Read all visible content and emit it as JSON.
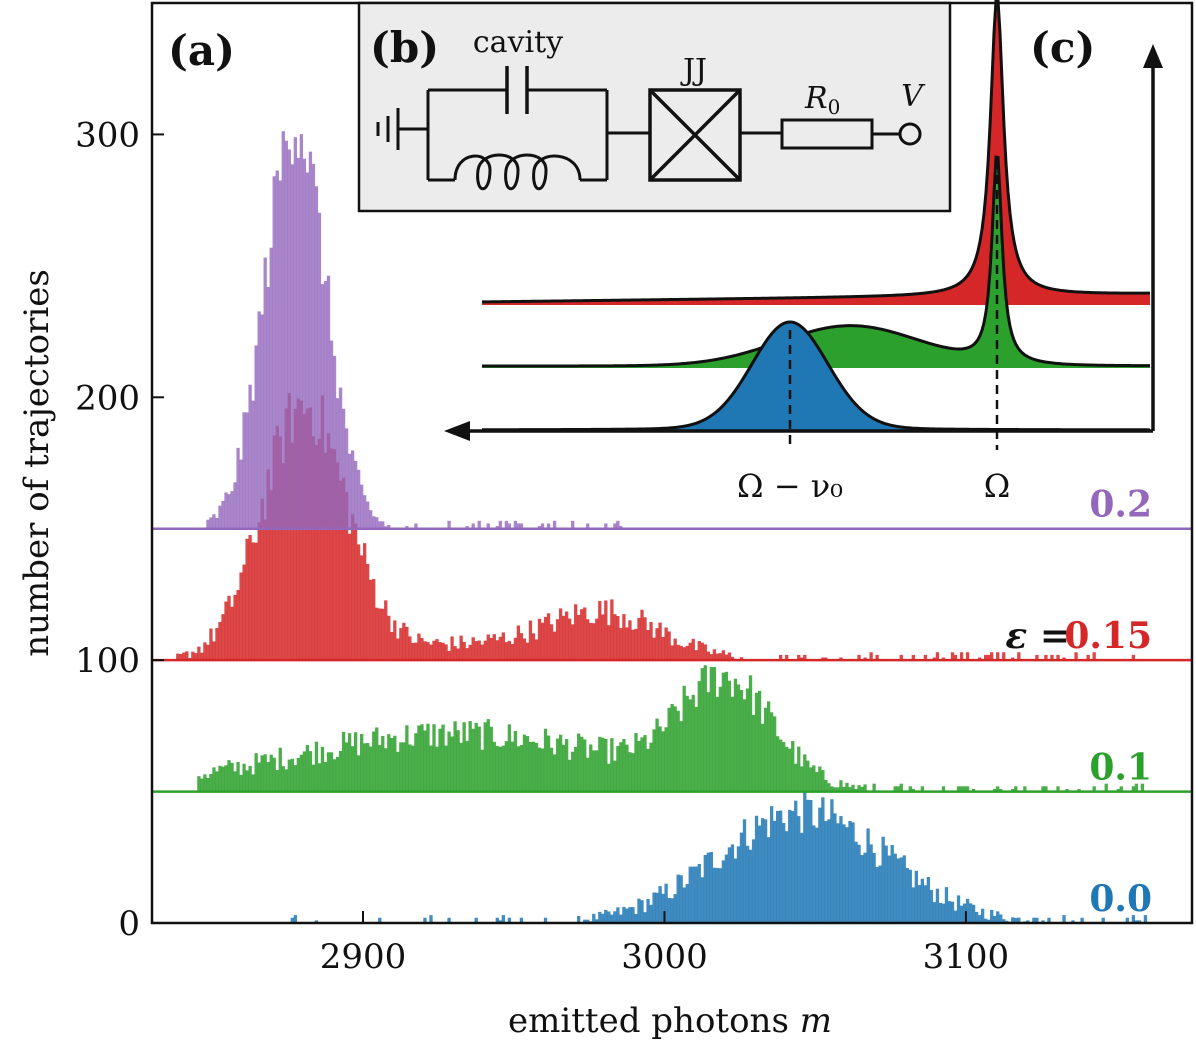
{
  "colors": {
    "purple": "#9467bd",
    "red": "#d62728",
    "green": "#2ca02c",
    "blue": "#1f77b4",
    "axis": "#111111",
    "inset_bg": "#ececec"
  },
  "chart_data": [
    {
      "type": "bar",
      "panel": "(a)",
      "title": "",
      "xlabel_text": "emitted photons",
      "xlabel_var": "m",
      "ylabel": "number of trajectories",
      "xlim": [
        2830,
        3175
      ],
      "ylim": [
        0,
        350
      ],
      "x_ticks": [
        2900,
        3000,
        3100
      ],
      "x_tick_labels": [
        "2900",
        "3000",
        "3100"
      ],
      "y_ticks": [
        0,
        100,
        200,
        300
      ],
      "y_tick_labels": [
        "0",
        "100",
        "200",
        "300"
      ],
      "legend_prefix": "ε =",
      "series": [
        {
          "name": "0.0",
          "color": "#1f77b4",
          "offset": 0,
          "components": [
            {
              "center": 3045,
              "sigma": 28,
              "amp": 42
            }
          ],
          "support": [
            2870,
            3160
          ]
        },
        {
          "name": "0.1",
          "color": "#2ca02c",
          "offset": 50,
          "components": [
            {
              "center": 3020,
              "sigma": 15,
              "amp": 38
            },
            {
              "center": 2930,
              "sigma": 55,
              "amp": 22
            }
          ],
          "support": [
            2845,
            3160
          ]
        },
        {
          "name": "0.15",
          "color": "#d62728",
          "offset": 100,
          "components": [
            {
              "center": 2880,
              "sigma": 14,
              "amp": 95
            },
            {
              "center": 2980,
              "sigma": 18,
              "amp": 15
            },
            {
              "center": 2940,
              "sigma": 40,
              "amp": 6
            }
          ],
          "support": [
            2835,
            3160
          ]
        },
        {
          "name": "0.2",
          "color": "#9467bd",
          "offset": 150,
          "components": [
            {
              "center": 2877,
              "sigma": 10,
              "amp": 155
            }
          ],
          "support": [
            2848,
            2990
          ]
        }
      ]
    },
    {
      "type": "line",
      "panel": "(c)",
      "description_labels": {
        "left_peak": "Ω − ν₀",
        "right_peak": "Ω"
      },
      "series": [
        {
          "name": "0.0",
          "color": "#1f77b4",
          "peaks": [
            {
              "position": "Ω − ν₀",
              "height": 1.0
            }
          ]
        },
        {
          "name": "0.1",
          "color": "#2ca02c",
          "peaks": [
            {
              "position": "Ω",
              "height": 1.0
            },
            {
              "position": "broad",
              "height": 0.25
            }
          ]
        },
        {
          "name": "0.15",
          "color": "#d62728",
          "peaks": [
            {
              "position": "Ω",
              "height": 1.0
            }
          ]
        }
      ]
    }
  ],
  "circuit": {
    "panel": "(b)",
    "cavity_label": "cavity",
    "jj_label": "JJ",
    "resistor_label": "R",
    "resistor_sub": "0",
    "voltage_label": "V"
  }
}
